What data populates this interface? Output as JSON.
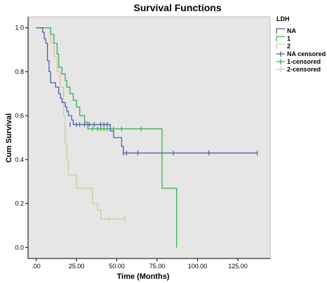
{
  "chart_data": {
    "type": "line",
    "title": "Survival Functions",
    "xlabel": "Time (Months)",
    "ylabel": "Cum Survival",
    "xlim": [
      -5,
      145
    ],
    "ylim": [
      -0.05,
      1.05
    ],
    "x_ticks": [
      0,
      25,
      50,
      75,
      100,
      125
    ],
    "x_tick_labels": [
      ".00",
      "25.00",
      "50.00",
      "75.00",
      "100.00",
      "125.00"
    ],
    "y_ticks": [
      0.0,
      0.2,
      0.4,
      0.6,
      0.8,
      1.0
    ],
    "y_tick_labels": [
      "0.0",
      "0.2",
      "0.4",
      "0.6",
      "0.8",
      "1.0"
    ],
    "grid": false,
    "legend_title": "LDH",
    "legend_position": "top-right outside",
    "legend_labels": [
      "NA",
      "1",
      "2",
      "NA censored",
      "1-censored",
      "2-censored"
    ],
    "colors": {
      "NA": "#4a5fa8",
      "1": "#3aaf4e",
      "2": "#d2c99a",
      "plot_bg": "#e6e6e6"
    },
    "series": [
      {
        "name": "NA",
        "steps": [
          [
            0,
            1.0
          ],
          [
            4,
            0.98
          ],
          [
            5,
            0.95
          ],
          [
            6,
            0.93
          ],
          [
            7,
            0.85
          ],
          [
            8,
            0.8
          ],
          [
            9,
            0.75
          ],
          [
            12,
            0.73
          ],
          [
            14,
            0.7
          ],
          [
            15,
            0.68
          ],
          [
            16,
            0.66
          ],
          [
            18,
            0.64
          ],
          [
            19,
            0.62
          ],
          [
            20,
            0.6
          ],
          [
            22,
            0.58
          ],
          [
            23,
            0.56
          ],
          [
            46,
            0.53
          ],
          [
            48,
            0.5
          ],
          [
            53,
            0.46
          ],
          [
            54,
            0.43
          ]
        ],
        "end_x": 137,
        "censored": [
          [
            21,
            0.56
          ],
          [
            25,
            0.56
          ],
          [
            27,
            0.56
          ],
          [
            30,
            0.56
          ],
          [
            33,
            0.56
          ],
          [
            36,
            0.56
          ],
          [
            40,
            0.56
          ],
          [
            42,
            0.56
          ],
          [
            44,
            0.56
          ],
          [
            54,
            0.43
          ],
          [
            56,
            0.43
          ],
          [
            63,
            0.43
          ],
          [
            85,
            0.43
          ],
          [
            107,
            0.43
          ],
          [
            137,
            0.43
          ]
        ]
      },
      {
        "name": "1",
        "steps": [
          [
            0,
            1.0
          ],
          [
            9,
            0.97
          ],
          [
            11,
            0.93
          ],
          [
            13,
            0.88
          ],
          [
            14,
            0.82
          ],
          [
            16,
            0.79
          ],
          [
            18,
            0.76
          ],
          [
            19,
            0.73
          ],
          [
            21,
            0.7
          ],
          [
            23,
            0.67
          ],
          [
            25,
            0.64
          ],
          [
            27,
            0.6
          ],
          [
            30,
            0.57
          ],
          [
            32,
            0.54
          ],
          [
            78,
            0.27
          ],
          [
            87,
            0.0
          ]
        ],
        "end_x": 87,
        "censored": [
          [
            35,
            0.54
          ],
          [
            38,
            0.54
          ],
          [
            40,
            0.54
          ],
          [
            42,
            0.54
          ],
          [
            44,
            0.54
          ],
          [
            46,
            0.54
          ],
          [
            48,
            0.54
          ],
          [
            53,
            0.54
          ],
          [
            65,
            0.54
          ]
        ]
      },
      {
        "name": "2",
        "steps": [
          [
            0,
            1.0
          ],
          [
            5,
            1.0
          ],
          [
            9,
            0.93
          ],
          [
            11,
            0.87
          ],
          [
            13,
            0.8
          ],
          [
            15,
            0.73
          ],
          [
            17,
            0.6
          ],
          [
            18,
            0.47
          ],
          [
            19,
            0.4
          ],
          [
            20,
            0.33
          ],
          [
            25,
            0.27
          ],
          [
            30,
            0.27
          ],
          [
            35,
            0.2
          ],
          [
            38,
            0.17
          ],
          [
            40,
            0.13
          ]
        ],
        "end_x": 55,
        "censored": [
          [
            45,
            0.13
          ],
          [
            55,
            0.13
          ]
        ]
      }
    ]
  }
}
